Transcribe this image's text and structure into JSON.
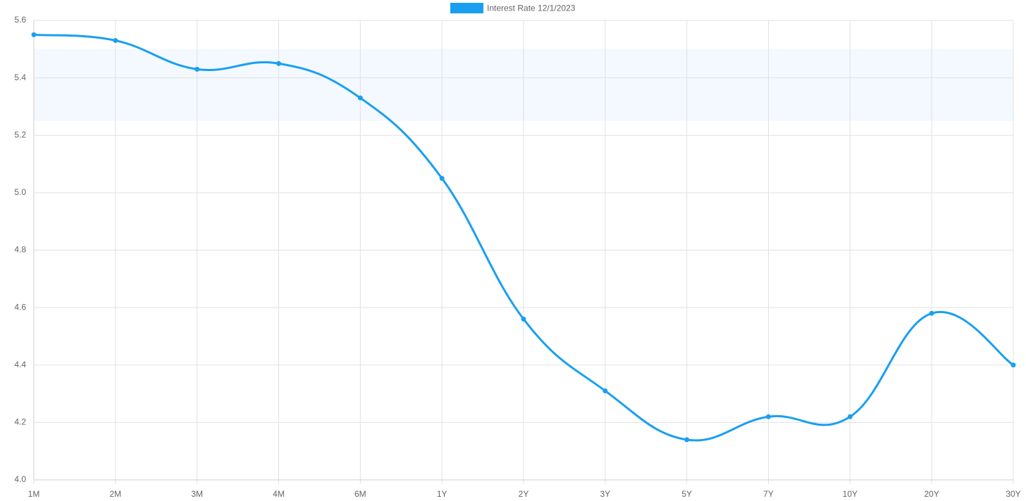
{
  "chart_data": {
    "type": "line",
    "categories": [
      "1M",
      "2M",
      "3M",
      "4M",
      "6M",
      "1Y",
      "2Y",
      "3Y",
      "5Y",
      "7Y",
      "10Y",
      "20Y",
      "30Y"
    ],
    "series": [
      {
        "name": "Interest Rate 12/1/2023",
        "color": "#1a9ff0",
        "values": [
          5.55,
          5.53,
          5.43,
          5.45,
          5.33,
          5.05,
          4.56,
          4.31,
          4.14,
          4.22,
          4.22,
          4.58,
          4.4
        ]
      }
    ],
    "highlight_band": {
      "from": 5.25,
      "to": 5.5,
      "color": "#f3f9fe"
    },
    "ylim": [
      4.0,
      5.6
    ],
    "yticks": [
      {
        "value": 4,
        "label": "4.0"
      },
      4.2,
      4.4,
      4.6,
      4.8,
      {
        "value": 5,
        "label": "5.0"
      },
      5.2,
      5.4,
      5.6
    ],
    "grid": true,
    "legend": "top"
  }
}
